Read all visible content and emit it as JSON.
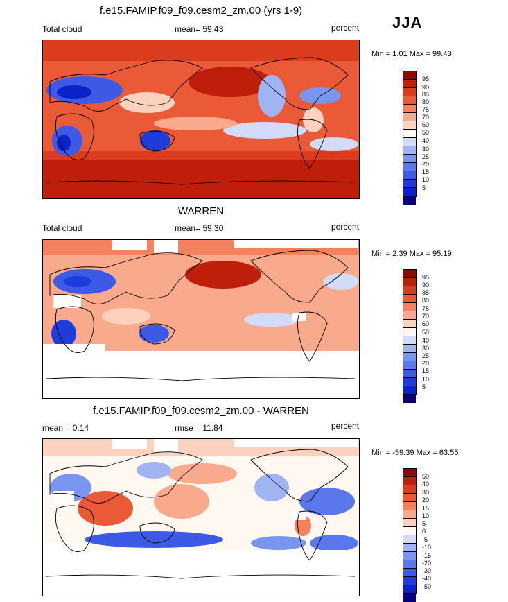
{
  "season": "JJA",
  "panels": [
    {
      "title": "f.e15.FAMIP.f09_f09.cesm2_zm.00 (yrs 1-9)",
      "left_label": "Total cloud",
      "center_label": "mean=  59.43",
      "right_label": "percent",
      "minmax": "Min =   1.01 Max =  99.43",
      "cbar_labels": [
        "95",
        "90",
        "85",
        "80",
        "75",
        "70",
        "60",
        "50",
        "40",
        "30",
        "25",
        "20",
        "15",
        "10",
        "5"
      ]
    },
    {
      "title": "WARREN",
      "left_label": "Total cloud",
      "center_label": "mean=  59.30",
      "right_label": "percent",
      "minmax": "Min =   2.39 Max =  95.19",
      "cbar_labels": [
        "95",
        "90",
        "85",
        "80",
        "75",
        "70",
        "60",
        "50",
        "40",
        "30",
        "25",
        "20",
        "15",
        "10",
        "5"
      ]
    },
    {
      "title": "f.e15.FAMIP.f09_f09.cesm2_zm.00 - WARREN",
      "left_label": "mean =   0.14",
      "center_label": "rmse =  11.84",
      "right_label": "percent",
      "minmax": "Min = -59.39 Max =  63.55",
      "cbar_labels": [
        "50",
        "40",
        "30",
        "20",
        "15",
        "10",
        "5",
        "0",
        "-5",
        "-10",
        "-15",
        "-20",
        "-30",
        "-40",
        "-50"
      ]
    }
  ],
  "colors": {
    "palette": [
      "#0a0078",
      "#0a23c8",
      "#1e3cdc",
      "#3c5ae6",
      "#5a78ec",
      "#7896f0",
      "#a0b4f4",
      "#d2dcf8",
      "#fff8f0",
      "#fcd2be",
      "#faaa8c",
      "#f5825f",
      "#eb5a37",
      "#dc3c1e",
      "#be1e0a",
      "#8c0a00"
    ]
  }
}
